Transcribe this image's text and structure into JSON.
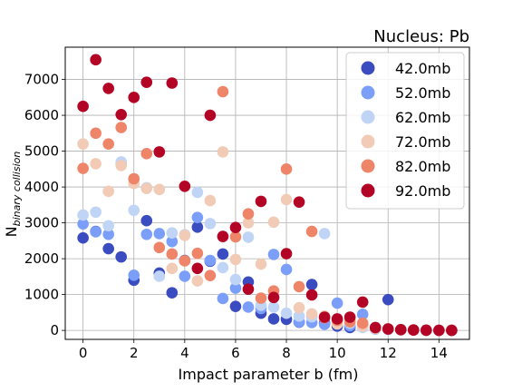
{
  "chart_data": {
    "type": "scatter",
    "title": "Nucleus: Pb",
    "xlabel": "Impact parameter b (fm)",
    "ylabel_main": "N",
    "ylabel_sub": "binary collision",
    "xlim": [
      -0.7,
      15.2
    ],
    "ylim": [
      -250,
      7900
    ],
    "xticks": [
      0,
      2,
      4,
      6,
      8,
      10,
      12,
      14
    ],
    "yticks": [
      0,
      1000,
      2000,
      3000,
      4000,
      5000,
      6000,
      7000
    ],
    "grid": true,
    "legend_position": "top-right",
    "series": [
      {
        "name": "42.0mb",
        "color": "#3b4cc0",
        "points": [
          [
            0,
            2580
          ],
          [
            0.5,
            2760
          ],
          [
            1,
            2280
          ],
          [
            1.5,
            2050
          ],
          [
            2,
            1400
          ],
          [
            2.5,
            3060
          ],
          [
            3,
            1600
          ],
          [
            3.5,
            1050
          ],
          [
            4,
            1950
          ],
          [
            4.5,
            2880
          ],
          [
            5,
            1930
          ],
          [
            5.5,
            2130
          ],
          [
            6,
            670
          ],
          [
            6.5,
            1350
          ],
          [
            7,
            480
          ],
          [
            7.5,
            320
          ],
          [
            8,
            310
          ],
          [
            8.5,
            230
          ],
          [
            9,
            1280
          ],
          [
            9.5,
            210
          ],
          [
            10,
            120
          ],
          [
            10.5,
            80
          ],
          [
            11,
            150
          ],
          [
            11.5,
            60
          ],
          [
            12,
            860
          ],
          [
            12.5,
            20
          ],
          [
            13,
            10
          ],
          [
            13.5,
            5
          ],
          [
            14,
            2
          ],
          [
            14.5,
            1
          ]
        ]
      },
      {
        "name": "52.0mb",
        "color": "#7b9ff9",
        "points": [
          [
            0,
            2970
          ],
          [
            0.5,
            2750
          ],
          [
            1,
            2680
          ],
          [
            1.5,
            4650
          ],
          [
            2,
            1540
          ],
          [
            2.5,
            2680
          ],
          [
            3,
            2700
          ],
          [
            3.5,
            2480
          ],
          [
            4,
            1510
          ],
          [
            4.5,
            3150
          ],
          [
            5,
            1950
          ],
          [
            5.5,
            890
          ],
          [
            6,
            1180
          ],
          [
            6.5,
            650
          ],
          [
            7,
            610
          ],
          [
            7.5,
            2120
          ],
          [
            8,
            1700
          ],
          [
            8.5,
            240
          ],
          [
            9,
            220
          ],
          [
            9.5,
            170
          ],
          [
            10,
            760
          ],
          [
            10.5,
            130
          ],
          [
            11,
            450
          ],
          [
            11.5,
            40
          ],
          [
            12,
            30
          ],
          [
            12.5,
            20
          ],
          [
            13,
            10
          ],
          [
            13.5,
            5
          ],
          [
            14,
            2
          ],
          [
            14.5,
            1
          ]
        ]
      },
      {
        "name": "62.0mb",
        "color": "#c0d4f5",
        "points": [
          [
            0,
            3220
          ],
          [
            0.5,
            3300
          ],
          [
            1,
            2920
          ],
          [
            1.5,
            4700
          ],
          [
            2,
            3350
          ],
          [
            2.5,
            3980
          ],
          [
            3,
            1510
          ],
          [
            3.5,
            2720
          ],
          [
            4,
            2670
          ],
          [
            4.5,
            3850
          ],
          [
            5,
            2980
          ],
          [
            5.5,
            1750
          ],
          [
            6,
            1420
          ],
          [
            6.5,
            2600
          ],
          [
            7,
            700
          ],
          [
            7.5,
            650
          ],
          [
            8,
            480
          ],
          [
            8.5,
            400
          ],
          [
            9,
            380
          ],
          [
            9.5,
            2700
          ],
          [
            10,
            300
          ],
          [
            10.5,
            200
          ],
          [
            11,
            80
          ],
          [
            11.5,
            50
          ],
          [
            12,
            40
          ],
          [
            12.5,
            20
          ],
          [
            13,
            10
          ],
          [
            13.5,
            5
          ],
          [
            14,
            2
          ],
          [
            14.5,
            1
          ]
        ]
      },
      {
        "name": "72.0mb",
        "color": "#f2cbb7",
        "points": [
          [
            0,
            5200
          ],
          [
            0.5,
            4650
          ],
          [
            1,
            3880
          ],
          [
            1.5,
            4600
          ],
          [
            2,
            4100
          ],
          [
            2.5,
            3960
          ],
          [
            3,
            3930
          ],
          [
            3.5,
            1730
          ],
          [
            4,
            2650
          ],
          [
            4.5,
            1380
          ],
          [
            5,
            3620
          ],
          [
            5.5,
            4980
          ],
          [
            6,
            1980
          ],
          [
            6.5,
            3000
          ],
          [
            7,
            1850
          ],
          [
            7.5,
            3020
          ],
          [
            8,
            3650
          ],
          [
            8.5,
            630
          ],
          [
            9,
            460
          ],
          [
            9.5,
            400
          ],
          [
            10,
            180
          ],
          [
            10.5,
            320
          ],
          [
            11,
            120
          ],
          [
            11.5,
            60
          ],
          [
            12,
            40
          ],
          [
            12.5,
            20
          ],
          [
            13,
            10
          ],
          [
            13.5,
            5
          ],
          [
            14,
            2
          ],
          [
            14.5,
            1
          ]
        ]
      },
      {
        "name": "82.0mb",
        "color": "#ee8468",
        "points": [
          [
            0,
            4520
          ],
          [
            0.5,
            5500
          ],
          [
            1,
            5200
          ],
          [
            1.5,
            5660
          ],
          [
            2,
            4230
          ],
          [
            2.5,
            4930
          ],
          [
            3,
            2310
          ],
          [
            3.5,
            2130
          ],
          [
            4,
            1940
          ],
          [
            4.5,
            2150
          ],
          [
            5,
            1530
          ],
          [
            5.5,
            6660
          ],
          [
            6,
            2610
          ],
          [
            6.5,
            3250
          ],
          [
            7,
            900
          ],
          [
            7.5,
            1100
          ],
          [
            8,
            4500
          ],
          [
            8.5,
            1220
          ],
          [
            9,
            2760
          ],
          [
            9.5,
            350
          ],
          [
            10,
            280
          ],
          [
            10.5,
            240
          ],
          [
            11,
            200
          ],
          [
            11.5,
            70
          ],
          [
            12,
            40
          ],
          [
            12.5,
            20
          ],
          [
            13,
            10
          ],
          [
            13.5,
            5
          ],
          [
            14,
            2
          ],
          [
            14.5,
            1
          ]
        ]
      },
      {
        "name": "92.0mb",
        "color": "#b40426",
        "points": [
          [
            0,
            6250
          ],
          [
            0.5,
            7550
          ],
          [
            1,
            6750
          ],
          [
            1.5,
            6020
          ],
          [
            2,
            6500
          ],
          [
            2.5,
            6920
          ],
          [
            3,
            4980
          ],
          [
            3.5,
            6900
          ],
          [
            4,
            4020
          ],
          [
            4.5,
            1730
          ],
          [
            5,
            6000
          ],
          [
            5.5,
            2620
          ],
          [
            6,
            2870
          ],
          [
            6.5,
            1150
          ],
          [
            7,
            3600
          ],
          [
            7.5,
            920
          ],
          [
            8,
            2140
          ],
          [
            8.5,
            3580
          ],
          [
            9,
            990
          ],
          [
            9.5,
            370
          ],
          [
            10,
            320
          ],
          [
            10.5,
            370
          ],
          [
            11,
            790
          ],
          [
            11.5,
            80
          ],
          [
            12,
            40
          ],
          [
            12.5,
            20
          ],
          [
            13,
            10
          ],
          [
            13.5,
            5
          ],
          [
            14,
            2
          ],
          [
            14.5,
            1
          ]
        ]
      }
    ]
  }
}
